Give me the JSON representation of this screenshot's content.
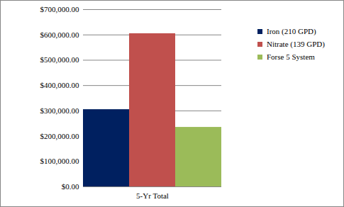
{
  "chart_data": {
    "type": "bar",
    "categories": [
      "5-Yr Total"
    ],
    "series": [
      {
        "name": "Iron (210 GPD)",
        "color": "#002060",
        "values": [
          305000
        ]
      },
      {
        "name": "Nitrate (139 GPD)",
        "color": "#C0504D",
        "values": [
          605000
        ]
      },
      {
        "name": "Forse 5 System",
        "color": "#9BBB59",
        "values": [
          235000
        ]
      }
    ],
    "ylim": [
      0,
      700000
    ],
    "yticks": [
      {
        "value": 0,
        "label": "$0.00"
      },
      {
        "value": 100000,
        "label": "$100,000.00"
      },
      {
        "value": 200000,
        "label": "$200,000.00"
      },
      {
        "value": 300000,
        "label": "$300,000.00"
      },
      {
        "value": 400000,
        "label": "$400,000.00"
      },
      {
        "value": 500000,
        "label": "$500,000.00"
      },
      {
        "value": 600000,
        "label": "$600,000.00"
      },
      {
        "value": 700000,
        "label": "$700,000.00"
      }
    ],
    "grid": true,
    "legend": "right"
  }
}
